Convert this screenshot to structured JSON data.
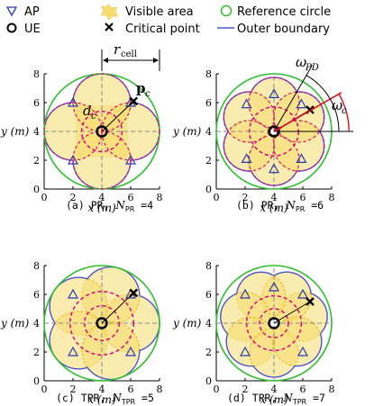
{
  "legend": {
    "ap": "AP",
    "ue": "UE",
    "visible_area": "Visible area",
    "critical_point": "Critical point",
    "reference_circle": "Reference circle",
    "outer_boundary": "Outer boundary"
  },
  "axes": {
    "x_label": "x (m)",
    "y_label": "y (m)",
    "ticks": [
      "0",
      "2",
      "4",
      "6",
      "8"
    ]
  },
  "annotations": {
    "r_cell": "r",
    "r_cell_sub": "cell",
    "d_c": "d",
    "d_c_sub": "c",
    "p_c": "p",
    "p_c_sub": "c",
    "omega_pd": "ω",
    "omega_pd_sub": "PD",
    "omega_c": "ω",
    "omega_c_sub": "c"
  },
  "panels": [
    {
      "caption_prefix": "(a) PR, ",
      "caption_sym": "N",
      "caption_sub": "PR",
      "caption_value": " =4"
    },
    {
      "caption_prefix": "(b) PR, ",
      "caption_sym": "N",
      "caption_sub": "PR",
      "caption_value": " =6"
    },
    {
      "caption_prefix": "(c) TPR, ",
      "caption_sym": "N",
      "caption_sub": "TPR",
      "caption_value": " =5"
    },
    {
      "caption_prefix": "(d) TPR, ",
      "caption_sym": "N",
      "caption_sub": "TPR",
      "caption_value": " =7"
    }
  ],
  "colors": {
    "visible_area": "#f5dc6e",
    "visible_edge": "#e2b400",
    "reference_circle": "#2fbf2f",
    "outer_boundary": "#4d55c8",
    "dashed_pink": "#e0007a",
    "ap_marker": "#2b3bb0",
    "omega_c": "#d8141c",
    "grid_dash": "#777777"
  }
}
